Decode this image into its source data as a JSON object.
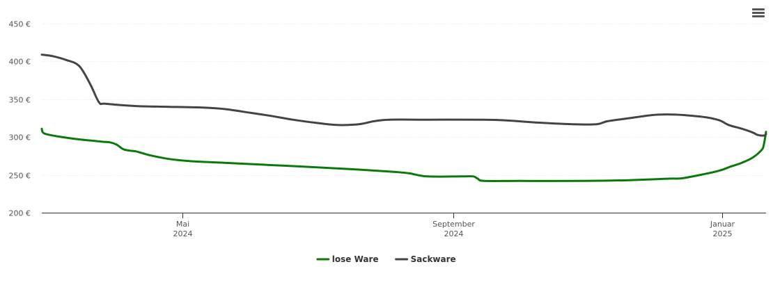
{
  "menu": {
    "icon": "hamburger-menu-icon"
  },
  "chart_data": {
    "type": "line",
    "title": "",
    "xlabel": "",
    "ylabel": "",
    "y_unit": "€",
    "ylim": [
      200,
      450
    ],
    "y_ticks": [
      {
        "value": 200,
        "label": "200 €"
      },
      {
        "value": 250,
        "label": "250 €"
      },
      {
        "value": 300,
        "label": "300 €"
      },
      {
        "value": 350,
        "label": "350 €"
      },
      {
        "value": 400,
        "label": "400 €"
      },
      {
        "value": 450,
        "label": "450 €"
      }
    ],
    "xlim": [
      "2024-02-27",
      "2025-01-21"
    ],
    "x_ticks": [
      {
        "date": "2024-05-01",
        "month": "Mai",
        "year": "2024"
      },
      {
        "date": "2024-09-01",
        "month": "September",
        "year": "2024"
      },
      {
        "date": "2025-01-01",
        "month": "Januar",
        "year": "2025"
      }
    ],
    "grid": true,
    "legend_position": "bottom-center",
    "series": [
      {
        "name": "lose Ware",
        "color": "#0a7a0a",
        "points": [
          [
            "2024-02-27",
            311
          ],
          [
            "2024-02-28",
            305
          ],
          [
            "2024-03-05",
            301
          ],
          [
            "2024-03-15",
            297
          ],
          [
            "2024-03-25",
            294
          ],
          [
            "2024-03-29",
            293
          ],
          [
            "2024-04-01",
            290
          ],
          [
            "2024-04-04",
            284
          ],
          [
            "2024-04-07",
            282
          ],
          [
            "2024-04-10",
            281
          ],
          [
            "2024-04-16",
            276
          ],
          [
            "2024-04-25",
            271
          ],
          [
            "2024-05-05",
            268
          ],
          [
            "2024-05-20",
            266
          ],
          [
            "2024-06-10",
            263
          ],
          [
            "2024-07-01",
            260
          ],
          [
            "2024-07-20",
            257
          ],
          [
            "2024-08-05",
            254
          ],
          [
            "2024-08-12",
            252
          ],
          [
            "2024-08-20",
            248
          ],
          [
            "2024-09-05",
            248
          ],
          [
            "2024-09-10",
            248
          ],
          [
            "2024-09-12",
            245
          ],
          [
            "2024-09-15",
            242
          ],
          [
            "2024-10-01",
            242
          ],
          [
            "2024-10-30",
            242
          ],
          [
            "2024-11-20",
            243
          ],
          [
            "2024-12-08",
            245
          ],
          [
            "2024-12-15",
            246
          ],
          [
            "2024-12-30",
            255
          ],
          [
            "2025-01-05",
            261
          ],
          [
            "2025-01-10",
            266
          ],
          [
            "2025-01-15",
            273
          ],
          [
            "2025-01-19",
            283
          ],
          [
            "2025-01-20",
            290
          ],
          [
            "2025-01-21",
            307
          ]
        ]
      },
      {
        "name": "Sackware",
        "color": "#444444",
        "points": [
          [
            "2024-02-27",
            409
          ],
          [
            "2024-03-03",
            407
          ],
          [
            "2024-03-09",
            402
          ],
          [
            "2024-03-15",
            394
          ],
          [
            "2024-03-20",
            370
          ],
          [
            "2024-03-24",
            346
          ],
          [
            "2024-03-27",
            344
          ],
          [
            "2024-04-10",
            341
          ],
          [
            "2024-04-25",
            340
          ],
          [
            "2024-05-10",
            339
          ],
          [
            "2024-05-20",
            337
          ],
          [
            "2024-06-01",
            332
          ],
          [
            "2024-06-10",
            328
          ],
          [
            "2024-06-20",
            323
          ],
          [
            "2024-06-30",
            319
          ],
          [
            "2024-07-10",
            316
          ],
          [
            "2024-07-20",
            317
          ],
          [
            "2024-07-27",
            321
          ],
          [
            "2024-08-03",
            323
          ],
          [
            "2024-08-20",
            323
          ],
          [
            "2024-09-15",
            323
          ],
          [
            "2024-09-25",
            322
          ],
          [
            "2024-10-10",
            319
          ],
          [
            "2024-10-25",
            317
          ],
          [
            "2024-11-05",
            317
          ],
          [
            "2024-11-10",
            321
          ],
          [
            "2024-11-20",
            325
          ],
          [
            "2024-11-30",
            329
          ],
          [
            "2024-12-07",
            330
          ],
          [
            "2024-12-15",
            329
          ],
          [
            "2024-12-25",
            326
          ],
          [
            "2024-12-31",
            322
          ],
          [
            "2025-01-04",
            316
          ],
          [
            "2025-01-10",
            311
          ],
          [
            "2025-01-15",
            306
          ],
          [
            "2025-01-17",
            303
          ],
          [
            "2025-01-20",
            302
          ],
          [
            "2025-01-21",
            304
          ]
        ]
      }
    ]
  }
}
